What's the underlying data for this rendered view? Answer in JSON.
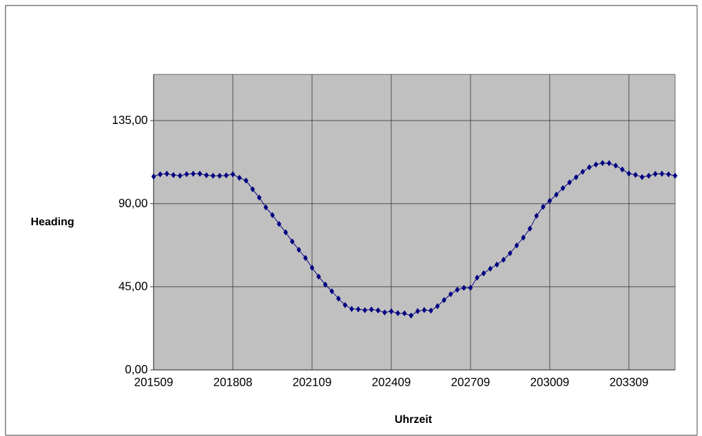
{
  "chart_data": {
    "type": "line",
    "xlabel": "Uhrzeit",
    "ylabel": "Heading",
    "categories": [
      "201509",
      null,
      null,
      null,
      null,
      null,
      null,
      null,
      null,
      null,
      null,
      null,
      "201808",
      null,
      null,
      null,
      null,
      null,
      null,
      null,
      null,
      null,
      null,
      null,
      "202109",
      null,
      null,
      null,
      null,
      null,
      null,
      null,
      null,
      null,
      null,
      null,
      "202409",
      null,
      null,
      null,
      null,
      null,
      null,
      null,
      null,
      null,
      null,
      null,
      "202709",
      null,
      null,
      null,
      null,
      null,
      null,
      null,
      null,
      null,
      null,
      null,
      "203009",
      null,
      null,
      null,
      null,
      null,
      null,
      null,
      null,
      null,
      null,
      null,
      "203309",
      null,
      null,
      null,
      null,
      null,
      null,
      null
    ],
    "series": [
      {
        "color": "#000080",
        "values": [
          104.7,
          105.9,
          106.2,
          105.5,
          105.1,
          106.0,
          106.2,
          106.2,
          105.4,
          105.1,
          105.1,
          105.3,
          105.9,
          104.0,
          102.5,
          97.8,
          93.3,
          88.0,
          83.8,
          79.0,
          74.5,
          69.5,
          65.0,
          60.6,
          55.3,
          50.5,
          46.2,
          42.6,
          38.6,
          35.1,
          33.0,
          32.8,
          32.3,
          32.7,
          32.2,
          31.1,
          31.7,
          30.7,
          30.6,
          29.4,
          31.8,
          32.4,
          32.1,
          34.5,
          37.8,
          41.0,
          43.4,
          44.4,
          44.4,
          49.9,
          52.3,
          54.8,
          57.0,
          59.6,
          63.2,
          67.4,
          71.6,
          76.5,
          83.4,
          88.3,
          91.5,
          94.9,
          98.4,
          101.5,
          104.3,
          107.3,
          109.7,
          111.2,
          112.0,
          111.9,
          110.6,
          108.5,
          106.3,
          105.6,
          104.4,
          105.1,
          106.1,
          106.2,
          105.9,
          105.1
        ]
      }
    ],
    "ylim": [
      0,
      160
    ],
    "yticks": [
      {
        "value": 0,
        "label": "0,00"
      },
      {
        "value": 45,
        "label": "45,00"
      },
      {
        "value": 90,
        "label": "90,00"
      },
      {
        "value": 135,
        "label": "135,00"
      }
    ],
    "grid": true,
    "marker": "diamond",
    "line_style": "solid"
  }
}
